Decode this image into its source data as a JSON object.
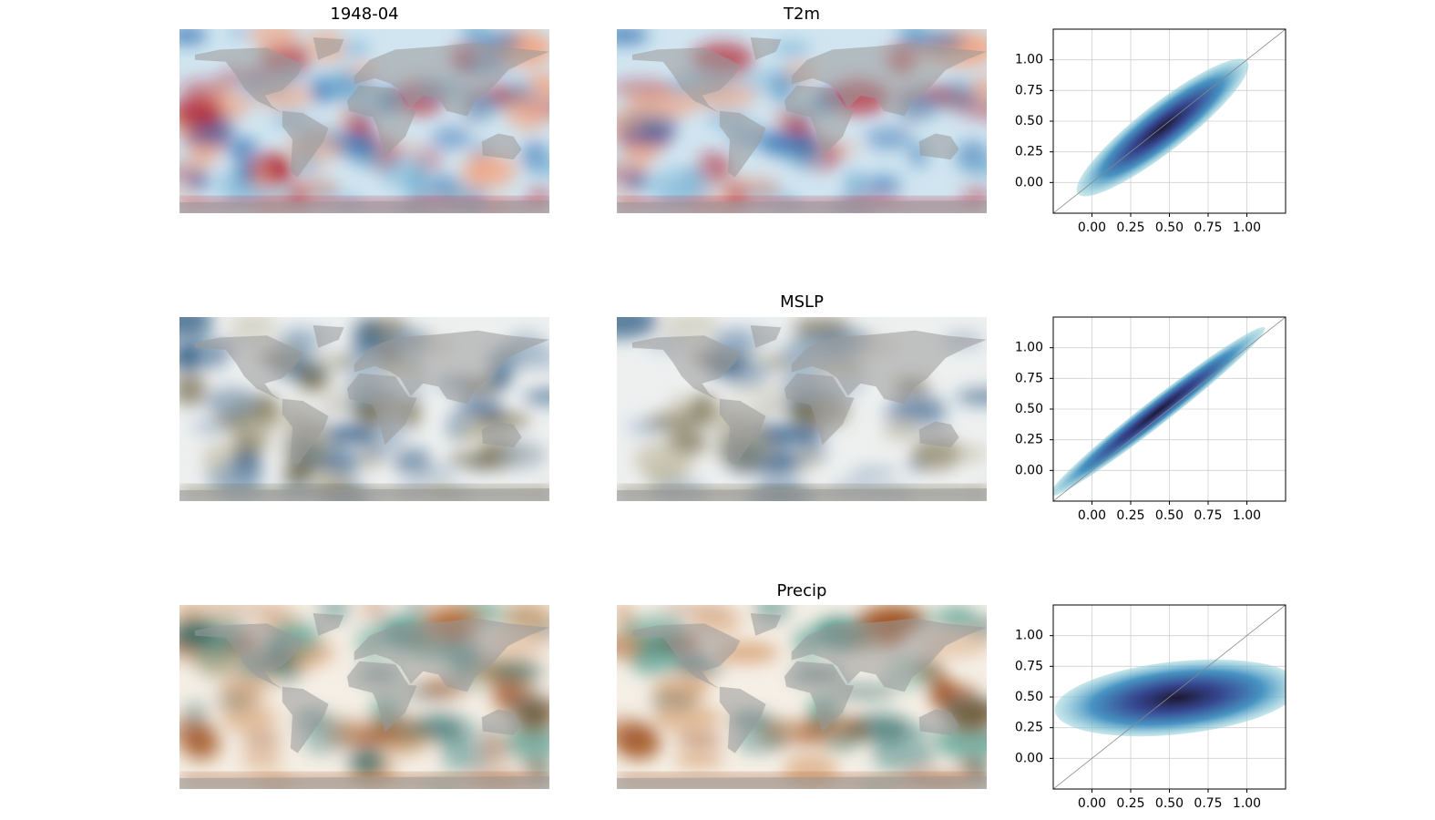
{
  "figure": {
    "rows": [
      {
        "left_title": "1948-04",
        "center_title": "T2m",
        "palette": [
          "#2166ac",
          "#67a9cf",
          "#d1e5f0",
          "#f4a582",
          "#b2182b"
        ]
      },
      {
        "center_title": "MSLP",
        "palette": [
          "#1d4e7a",
          "#8fa8c0",
          "#eef0f0",
          "#b5ad8f",
          "#5e5530"
        ]
      },
      {
        "center_title": "Precip",
        "palette": [
          "#0f5a5a",
          "#4f9d8f",
          "#f5efe6",
          "#d49a6a",
          "#9c4a14"
        ]
      }
    ]
  },
  "chart_data": [
    {
      "type": "hexbin",
      "xlim": [
        -0.25,
        1.25
      ],
      "ylim": [
        -0.25,
        1.25
      ],
      "xticks": [
        {
          "value": 0,
          "label": "0.00"
        },
        {
          "value": 0.25,
          "label": "0.25"
        },
        {
          "value": 0.5,
          "label": "0.50"
        },
        {
          "value": 0.75,
          "label": "0.75"
        },
        {
          "value": 1,
          "label": "1.00"
        }
      ],
      "yticks": [
        {
          "value": 0,
          "label": "0.00"
        },
        {
          "value": 0.25,
          "label": "0.25"
        },
        {
          "value": 0.5,
          "label": "0.50"
        },
        {
          "value": 0.75,
          "label": "0.75"
        },
        {
          "value": 1,
          "label": "1.00"
        }
      ],
      "grid": true,
      "identity_line": true
    },
    {
      "type": "hexbin",
      "xlim": [
        -0.25,
        1.25
      ],
      "ylim": [
        -0.25,
        1.25
      ],
      "xticks": [
        {
          "value": 0,
          "label": "0.00"
        },
        {
          "value": 0.25,
          "label": "0.25"
        },
        {
          "value": 0.5,
          "label": "0.50"
        },
        {
          "value": 0.75,
          "label": "0.75"
        },
        {
          "value": 1,
          "label": "1.00"
        }
      ],
      "yticks": [
        {
          "value": 0,
          "label": "0.00"
        },
        {
          "value": 0.25,
          "label": "0.25"
        },
        {
          "value": 0.5,
          "label": "0.50"
        },
        {
          "value": 0.75,
          "label": "0.75"
        },
        {
          "value": 1,
          "label": "1.00"
        }
      ],
      "grid": true,
      "identity_line": true
    },
    {
      "type": "hexbin",
      "xlim": [
        -0.25,
        1.25
      ],
      "ylim": [
        -0.25,
        1.25
      ],
      "xticks": [
        {
          "value": 0,
          "label": "0.00"
        },
        {
          "value": 0.25,
          "label": "0.25"
        },
        {
          "value": 0.5,
          "label": "0.50"
        },
        {
          "value": 0.75,
          "label": "0.75"
        },
        {
          "value": 1,
          "label": "1.00"
        }
      ],
      "yticks": [
        {
          "value": 0,
          "label": "0.00"
        },
        {
          "value": 0.25,
          "label": "0.25"
        },
        {
          "value": 0.5,
          "label": "0.50"
        },
        {
          "value": 0.75,
          "label": "0.75"
        },
        {
          "value": 1,
          "label": "1.00"
        }
      ],
      "grid": true,
      "identity_line": true
    }
  ]
}
